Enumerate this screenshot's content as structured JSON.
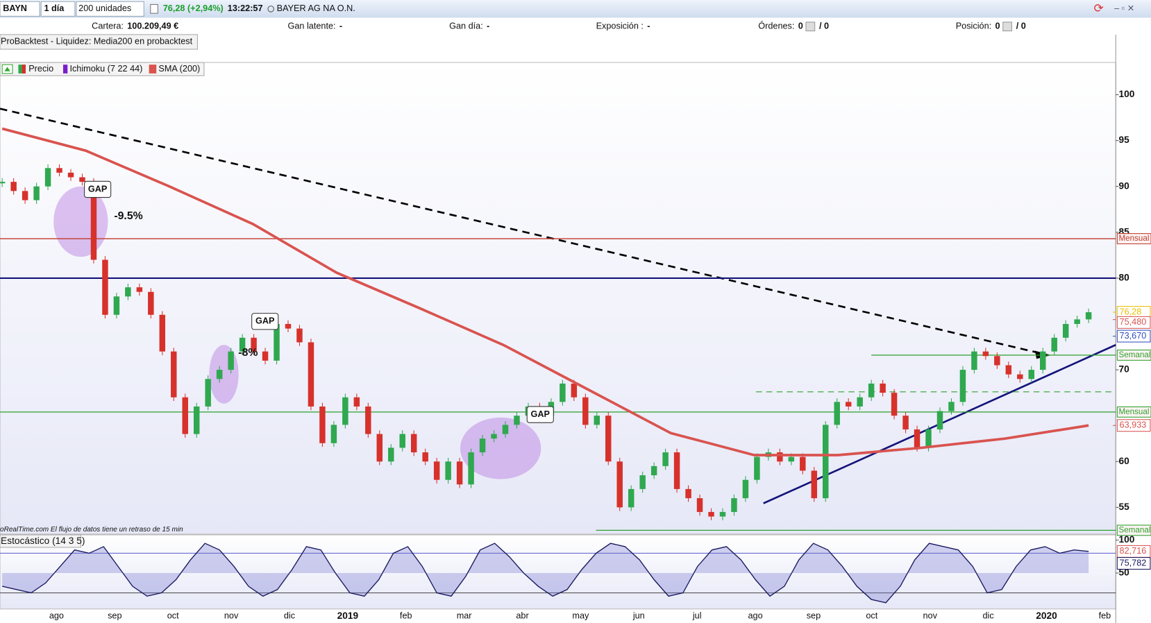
{
  "toolbar": {
    "symbol": "BAYN",
    "period": "1 día",
    "units": "200 unidades",
    "change": "76,28 (+2,94%)",
    "time": "13:22:57",
    "name": "BAYER AG NA O.N."
  },
  "account_bar": {
    "items": [
      {
        "label": "Cartera:",
        "value": "100.209,49 €"
      },
      {
        "label": "Gan latente:",
        "value": "-"
      },
      {
        "label": "Gan día:",
        "value": "-"
      },
      {
        "label": "Exposición :",
        "value": "-"
      },
      {
        "label": "Órdenes:",
        "value": "0",
        "extra": "/ 0"
      },
      {
        "label": "Posición:",
        "value": "0",
        "extra": "/ 0"
      }
    ]
  },
  "backtest_label": "ProBacktest - Liquidez: Media200 en probacktest",
  "legend": [
    "Precio",
    "Ichimoku (7 22 44)",
    "SMA (200)"
  ],
  "footer_note": "oRealTime.com El flujo de datos tiene un retraso de 15 min",
  "x_labels": [
    "ago",
    "sep",
    "oct",
    "nov",
    "dic",
    "2019",
    "feb",
    "mar",
    "abr",
    "may",
    "jun",
    "jul",
    "ago",
    "sep",
    "oct",
    "nov",
    "dic",
    "2020",
    "feb"
  ],
  "chart_data": [
    {
      "type": "candle",
      "ylim": [
        52.08,
        103.52
      ],
      "yticks": [
        100,
        95,
        90,
        85,
        80,
        70,
        60,
        55
      ],
      "series": [
        {
          "name": "Precio",
          "up_color": "#2fa84f",
          "down_color": "#d7312b",
          "values": [
            90.5,
            89.5,
            88.5,
            90,
            92,
            91.5,
            91,
            90.5,
            82,
            76,
            78,
            79,
            78.5,
            76,
            72,
            67,
            63,
            66,
            69,
            70,
            72,
            73.5,
            72,
            71,
            75,
            74.5,
            73,
            66,
            62,
            64,
            67,
            66,
            63,
            60,
            61.5,
            63,
            61,
            60,
            58,
            60,
            57.5,
            61,
            62.5,
            63,
            64,
            65,
            66,
            65,
            66.5,
            68.5,
            67,
            64,
            65,
            60,
            55,
            57,
            58.5,
            59.5,
            61,
            57,
            56,
            54.5,
            54,
            54.5,
            56,
            58,
            60.5,
            61,
            60,
            60.5,
            59,
            56,
            64,
            66.5,
            66,
            67,
            68.5,
            67.5,
            65,
            63.5,
            61.5,
            63.5,
            65.5,
            66.5,
            70,
            72,
            71.5,
            70.5,
            69.5,
            69,
            70,
            72,
            73.5,
            75,
            75.5,
            76.28
          ]
        },
        {
          "name": "SMA (200)",
          "color": "#d9534f",
          "values": [
            96.3,
            93.9,
            90,
            85.9,
            80.6,
            76.7,
            72.7,
            67.9,
            63.1,
            60.7,
            60.7,
            61.5,
            62.5,
            63.933
          ]
        }
      ],
      "levels": [
        {
          "value": 84.3,
          "label": "Mensual",
          "color": "#c0392b"
        },
        {
          "value": 80,
          "color": "#14147a"
        },
        {
          "value": 65.4,
          "label": "Mensual",
          "color": "#2ca02c"
        },
        {
          "value": 71.6,
          "label": "Semanal",
          "color": "#2ca02c"
        },
        {
          "value": 52.5,
          "label": "Semanal",
          "color": "#2ca02c"
        }
      ],
      "markers": [
        {
          "value": 76.28,
          "label": "76,28",
          "color": "#e8c000"
        },
        {
          "value": 75.48,
          "label": "75,480",
          "color": "#d9534f"
        },
        {
          "value": 73.67,
          "label": "73,670",
          "color": "#3050c0"
        },
        {
          "value": 63.933,
          "label": "63,933",
          "color": "#d9534f"
        }
      ],
      "annotations": [
        "GAP",
        "-9.5%",
        "GAP",
        "-8%",
        "GAP"
      ]
    },
    {
      "type": "line",
      "title": "Estocástico (14 3 5)",
      "ylim": [
        -4.4,
        107.8
      ],
      "yticks": [
        100,
        50
      ],
      "levels": [
        80,
        20
      ],
      "series": [
        {
          "name": "Estocástico",
          "color": "#1a1a60",
          "values": [
            30,
            25,
            20,
            35,
            60,
            85,
            80,
            90,
            60,
            30,
            15,
            20,
            40,
            70,
            95,
            85,
            60,
            30,
            15,
            25,
            55,
            90,
            85,
            50,
            20,
            15,
            40,
            80,
            90,
            60,
            20,
            15,
            45,
            85,
            95,
            75,
            50,
            30,
            15,
            25,
            55,
            80,
            95,
            90,
            70,
            40,
            15,
            20,
            60,
            85,
            90,
            70,
            40,
            15,
            30,
            70,
            95,
            85,
            60,
            30,
            10,
            5,
            30,
            70,
            95,
            90,
            85,
            60,
            20,
            25,
            60,
            85,
            90,
            80,
            85,
            82.716
          ]
        }
      ],
      "markers": [
        {
          "value": 82.716,
          "label": "82,716",
          "color": "#d9534f"
        },
        {
          "value": 75.782,
          "label": "75,782",
          "color": "#1a1a60"
        }
      ]
    }
  ]
}
